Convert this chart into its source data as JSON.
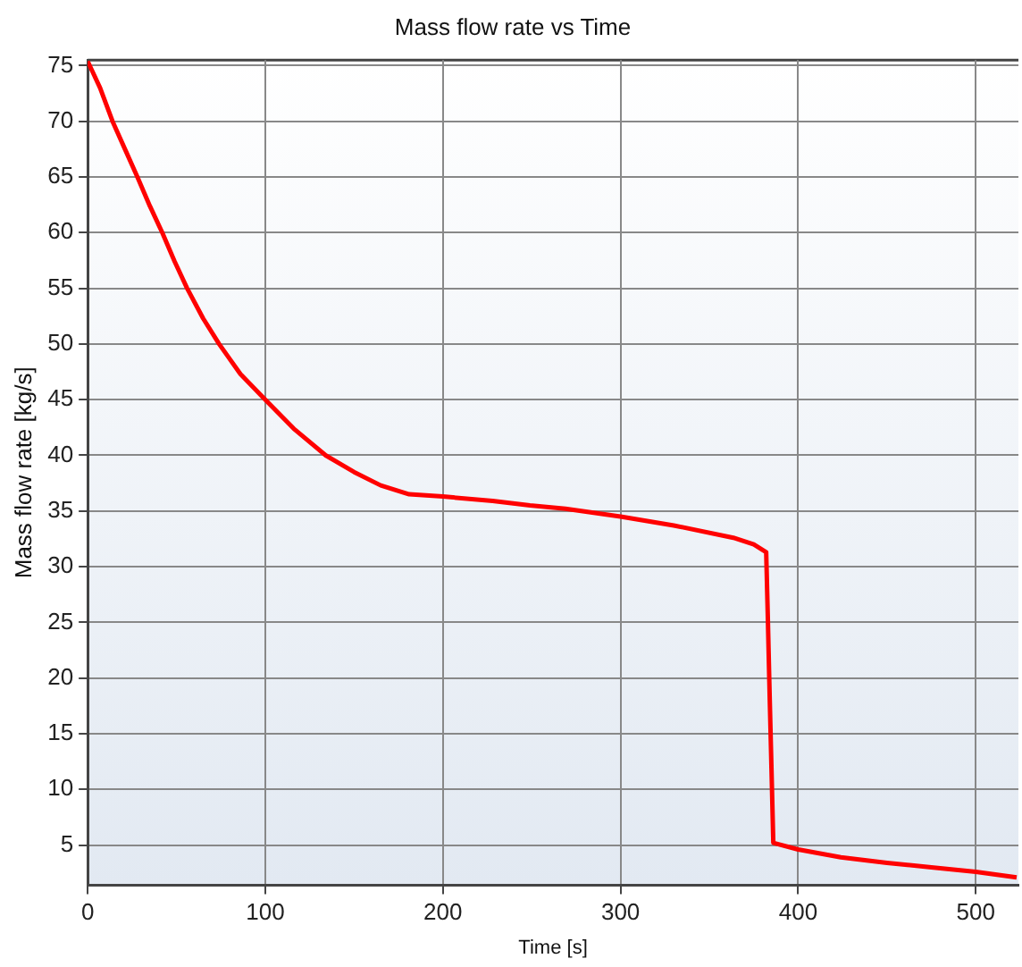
{
  "chart_data": {
    "type": "line",
    "title": "Mass flow rate vs Time",
    "xlabel": "Time [s]",
    "ylabel": "Mass flow rate [kg/s]",
    "x": [
      0,
      7,
      14,
      21,
      28,
      35,
      42,
      49,
      56,
      65,
      74,
      86,
      100,
      116,
      134,
      150,
      165,
      181,
      200,
      228,
      249,
      269,
      300,
      330,
      363.5,
      375,
      382,
      383,
      384,
      385,
      386,
      400,
      424,
      450,
      475,
      500,
      523
    ],
    "series": [
      {
        "color": "#ff0000",
        "values": [
          75.4,
          73,
          70,
          67.5,
          65,
          62.4,
          60,
          57.4,
          55,
          52.3,
          50,
          47.3,
          45,
          42.4,
          40,
          38.5,
          37.3,
          36.5,
          36.3,
          35.9,
          35.5,
          35.2,
          34.5,
          33.7,
          32.6,
          32,
          31.3,
          24.9,
          18.1,
          11.7,
          5.2,
          4.6,
          3.9,
          3.4,
          3.0,
          2.6,
          2.1
        ]
      }
    ],
    "xlim": [
      0,
      524
    ],
    "xticks": [
      0,
      100,
      200,
      300,
      400,
      500
    ],
    "ylim": [
      1.4,
      75.5
    ],
    "yticks": [
      5,
      10,
      15,
      20,
      25,
      30,
      35,
      40,
      45,
      50,
      55,
      60,
      65,
      70,
      75
    ],
    "grid": true,
    "legend": false,
    "marker": "none",
    "line_style": "solid"
  }
}
